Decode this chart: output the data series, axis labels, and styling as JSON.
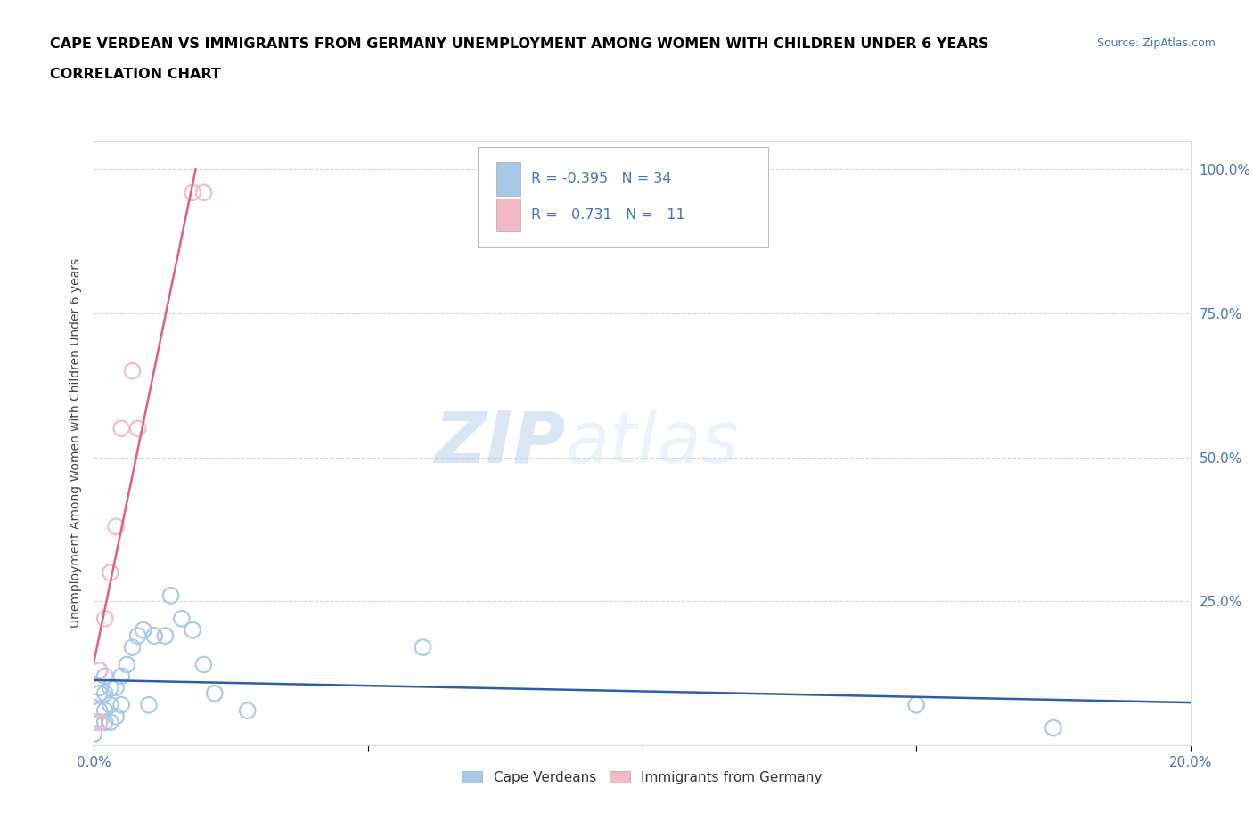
{
  "title_line1": "CAPE VERDEAN VS IMMIGRANTS FROM GERMANY UNEMPLOYMENT AMONG WOMEN WITH CHILDREN UNDER 6 YEARS",
  "title_line2": "CORRELATION CHART",
  "source_text": "Source: ZipAtlas.com",
  "ylabel": "Unemployment Among Women with Children Under 6 years",
  "xlim": [
    0.0,
    0.2
  ],
  "ylim": [
    0.0,
    1.05
  ],
  "blue_scatter_x": [
    0.0,
    0.0,
    0.001,
    0.001,
    0.001,
    0.001,
    0.001,
    0.002,
    0.002,
    0.002,
    0.002,
    0.003,
    0.003,
    0.003,
    0.004,
    0.004,
    0.005,
    0.005,
    0.006,
    0.007,
    0.008,
    0.009,
    0.01,
    0.011,
    0.013,
    0.014,
    0.016,
    0.018,
    0.02,
    0.022,
    0.028,
    0.06,
    0.15,
    0.175
  ],
  "blue_scatter_y": [
    0.04,
    0.02,
    0.04,
    0.06,
    0.09,
    0.1,
    0.13,
    0.04,
    0.06,
    0.09,
    0.12,
    0.04,
    0.07,
    0.1,
    0.05,
    0.1,
    0.07,
    0.12,
    0.14,
    0.17,
    0.19,
    0.2,
    0.07,
    0.19,
    0.19,
    0.26,
    0.22,
    0.2,
    0.14,
    0.09,
    0.06,
    0.17,
    0.07,
    0.03
  ],
  "pink_scatter_x": [
    0.0,
    0.001,
    0.001,
    0.002,
    0.003,
    0.004,
    0.005,
    0.007,
    0.008,
    0.018,
    0.02
  ],
  "pink_scatter_y": [
    0.04,
    0.04,
    0.13,
    0.22,
    0.3,
    0.38,
    0.55,
    0.65,
    0.55,
    0.96,
    0.96
  ],
  "blue_color": "#A8C8E8",
  "pink_color": "#F4B8C8",
  "blue_line_color": "#2B5FA0",
  "pink_line_color": "#E06080",
  "legend_r_blue": "-0.395",
  "legend_n_blue": "34",
  "legend_r_pink": "0.731",
  "legend_n_pink": "11",
  "background_color": "#FFFFFF",
  "grid_color": "#CCCCCC",
  "title_color": "#000000",
  "axis_color": "#4472C4",
  "legend_label_blue": "Cape Verdeans",
  "legend_label_pink": "Immigrants from Germany"
}
